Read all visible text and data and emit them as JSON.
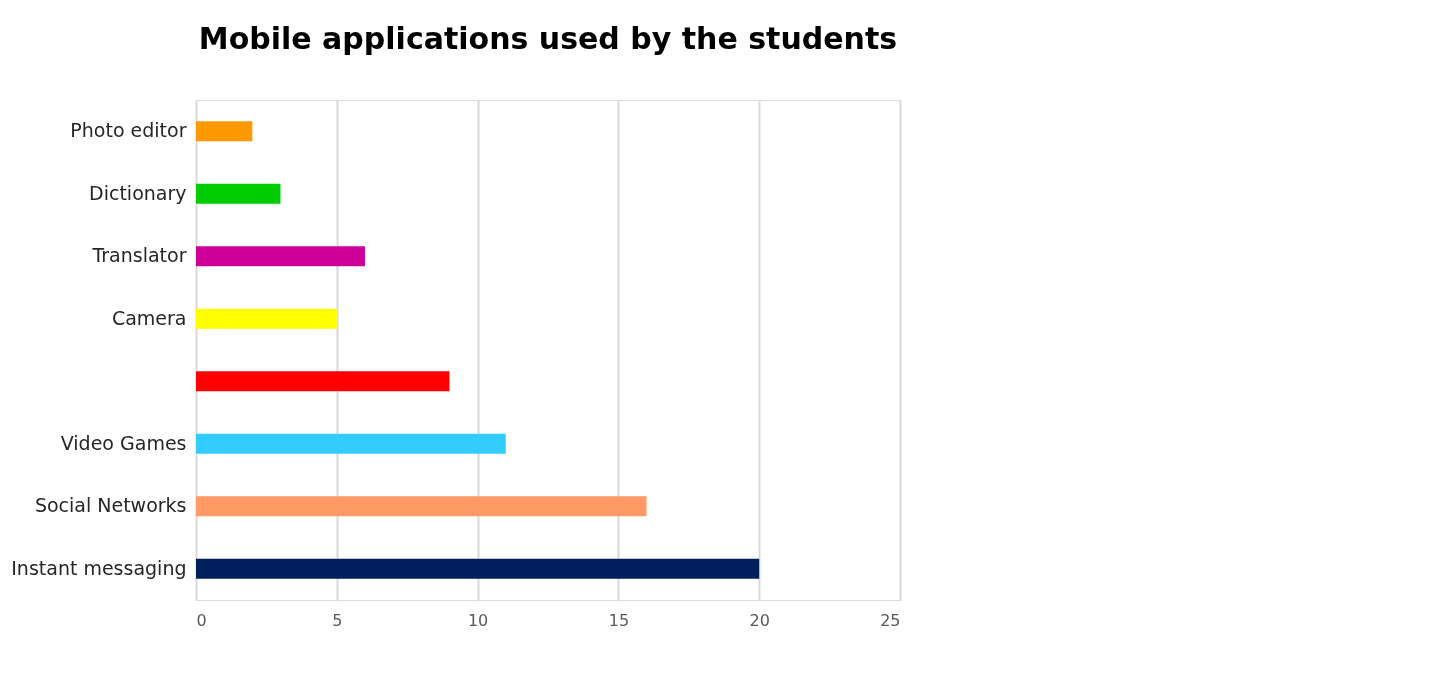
{
  "chart_data": {
    "type": "bar",
    "orientation": "horizontal",
    "title": "Mobile applications used by the students",
    "categories": [
      "Photo editor",
      "Dictionary",
      "Translator",
      "Camera",
      null,
      "Video Games",
      "Social Networks",
      "Instant messaging"
    ],
    "values": [
      2,
      3,
      6,
      5,
      9,
      11,
      16,
      20
    ],
    "colors": [
      "#ff9900",
      "#00cc00",
      "#cc0099",
      "#ffff00",
      "#ff0000",
      "#33ccff",
      "#ff9966",
      "#001f5c"
    ],
    "xlim": [
      0,
      25
    ],
    "xticks": [
      0,
      5,
      10,
      15,
      20,
      25
    ],
    "grid": "x",
    "legend": false
  }
}
